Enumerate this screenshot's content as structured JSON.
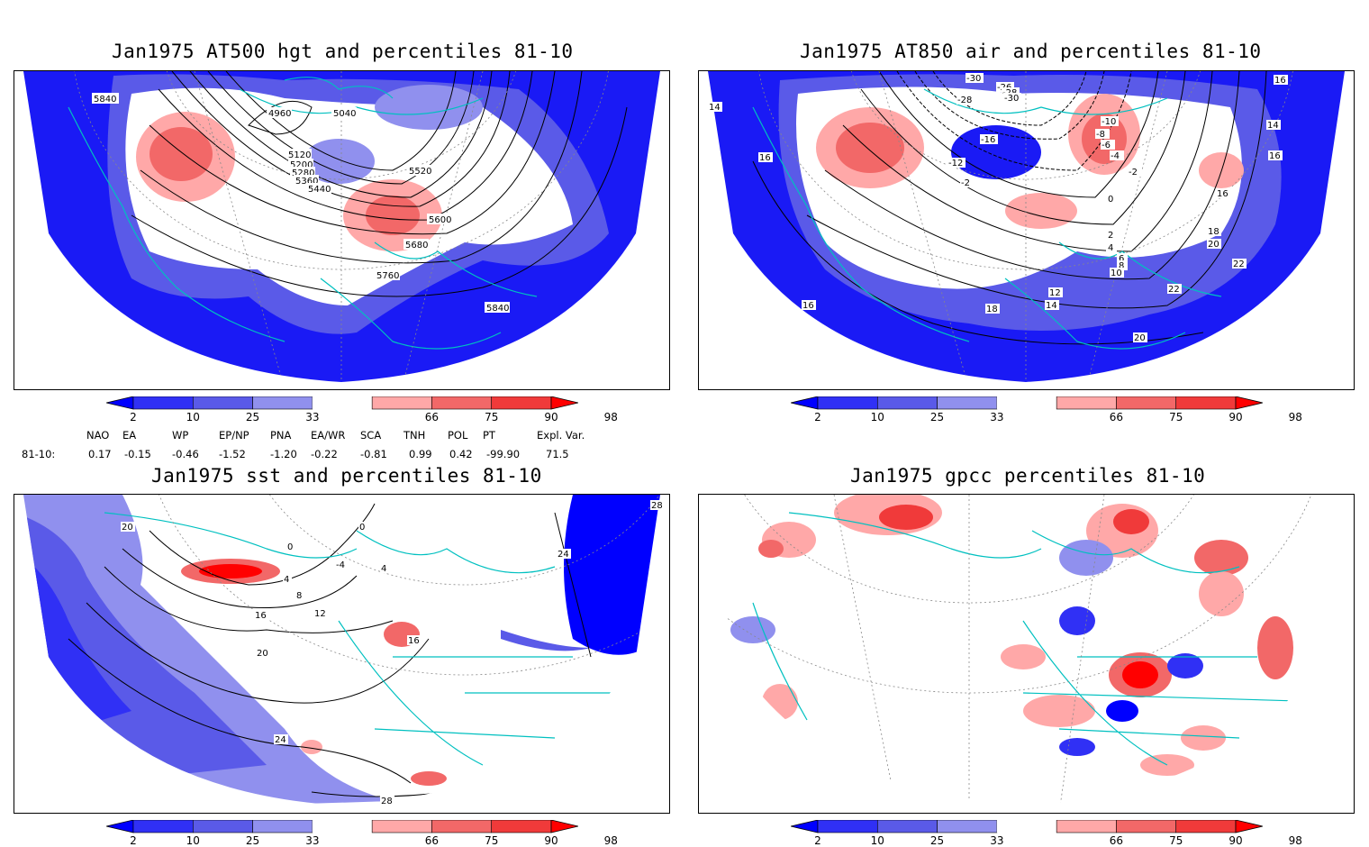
{
  "colorbar": {
    "ticks": [
      "2",
      "10",
      "25",
      "33",
      "66",
      "75",
      "90",
      "98"
    ],
    "colors": [
      "#0000ff",
      "#3030f5",
      "#5a5ae8",
      "#9090ee",
      "#ffffff",
      "#ffa8a8",
      "#f26868",
      "#f03a3a",
      "#ff0000"
    ]
  },
  "panels": [
    {
      "id": "p1",
      "title": "Jan1975 AT500 hgt and percentiles 81-10",
      "contour_labels": [
        "5840",
        "4960",
        "5040",
        "5120",
        "5200",
        "5280",
        "5360",
        "5440",
        "5520",
        "5600",
        "5680",
        "5760",
        "5840"
      ]
    },
    {
      "id": "p2",
      "title": "Jan1975 AT850 air and percentiles 81-10",
      "contour_labels": [
        "-30",
        "-28",
        "-26",
        "-28",
        "-30",
        "-16",
        "-10",
        "-8",
        "-6",
        "-4",
        "-2",
        "-2",
        "-12",
        "0",
        "2",
        "4",
        "6",
        "8",
        "10",
        "12",
        "14",
        "14",
        "14",
        "16",
        "16",
        "16",
        "16",
        "18",
        "18",
        "20",
        "20",
        "22",
        "22",
        "16"
      ]
    },
    {
      "id": "p3",
      "title": "Jan1975 sst and percentiles 81-10",
      "contour_labels": [
        "20",
        "0",
        "0",
        "-4",
        "4",
        "4",
        "8",
        "12",
        "16",
        "16",
        "20",
        "24",
        "24",
        "28",
        "28"
      ]
    },
    {
      "id": "p4",
      "title": "Jan1975 gpcc percentiles 81-10",
      "contour_labels": []
    }
  ],
  "indices": {
    "row_label": "81-10:",
    "names": [
      "NAO",
      "EA",
      "WP",
      "EP/NP",
      "PNA",
      "EA/WR",
      "SCA",
      "TNH",
      "POL",
      "PT",
      "Expl. Var."
    ],
    "values": [
      "0.17",
      "-0.15",
      "-0.46",
      "-1.52",
      "-1.20",
      "-0.22",
      "-0.81",
      "0.99",
      "0.42",
      "-99.90",
      "71.5"
    ]
  }
}
